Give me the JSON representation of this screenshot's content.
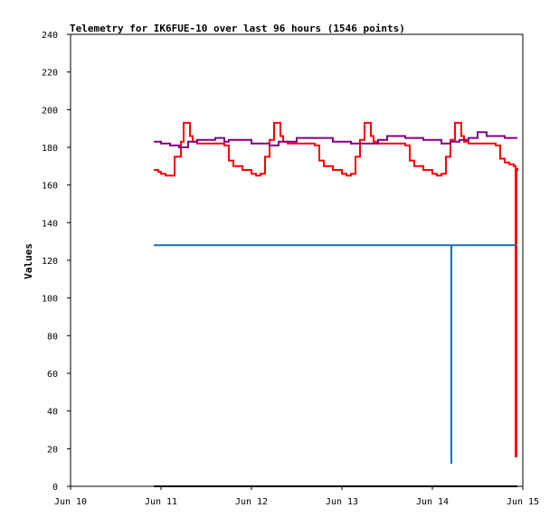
{
  "chart_data": {
    "type": "line",
    "title": "Telemetry for IK6FUE-10 over last 96 hours (1546 points)",
    "xlabel": "",
    "ylabel": "Values",
    "x_ticks": [
      "Jun 10",
      "Jun 11",
      "Jun 12",
      "Jun 13",
      "Jun 14",
      "Jun 15"
    ],
    "y_ticks": [
      "0",
      "20",
      "40",
      "60",
      "80",
      "100",
      "120",
      "140",
      "160",
      "180",
      "200",
      "220",
      "240"
    ],
    "xlim": [
      0,
      5
    ],
    "ylim": [
      0,
      240
    ],
    "grid": false,
    "legend": "none",
    "series": [
      {
        "color": "#ff0000",
        "x": [
          0.92,
          0.97,
          1.0,
          1.05,
          1.08,
          1.15,
          1.22,
          1.25,
          1.3,
          1.32,
          1.35,
          1.4,
          1.5,
          1.6,
          1.7,
          1.75,
          1.8,
          1.9,
          2.0,
          2.05,
          2.1,
          2.15,
          2.2,
          2.25,
          2.3,
          2.32,
          2.35,
          2.4,
          2.5,
          2.6,
          2.7,
          2.75,
          2.8,
          2.9,
          3.0,
          3.05,
          3.1,
          3.15,
          3.2,
          3.25,
          3.3,
          3.32,
          3.35,
          3.4,
          3.5,
          3.6,
          3.7,
          3.75,
          3.8,
          3.9,
          4.0,
          4.05,
          4.1,
          4.15,
          4.2,
          4.25,
          4.3,
          4.32,
          4.35,
          4.4,
          4.5,
          4.6,
          4.7,
          4.75,
          4.8,
          4.85,
          4.9,
          4.92,
          4.92,
          4.93,
          4.93,
          4.94
        ],
        "y": [
          168,
          167,
          166,
          165,
          165,
          175,
          183,
          193,
          193,
          186,
          183,
          182,
          182,
          182,
          181,
          173,
          170,
          168,
          166,
          165,
          166,
          175,
          184,
          193,
          193,
          186,
          183,
          182,
          182,
          182,
          181,
          173,
          170,
          168,
          166,
          165,
          166,
          175,
          184,
          193,
          193,
          186,
          183,
          182,
          182,
          182,
          181,
          173,
          170,
          168,
          166,
          165,
          166,
          175,
          184,
          193,
          193,
          186,
          183,
          182,
          182,
          182,
          181,
          174,
          172,
          171,
          170,
          169,
          16,
          94,
          168,
          169
        ]
      },
      {
        "color": "#800080",
        "x": [
          0.92,
          1.0,
          1.1,
          1.2,
          1.3,
          1.4,
          1.6,
          1.7,
          1.75,
          2.0,
          2.2,
          2.3,
          2.5,
          2.7,
          2.9,
          3.1,
          3.3,
          3.4,
          3.5,
          3.7,
          3.9,
          4.1,
          4.2,
          4.3,
          4.4,
          4.5,
          4.6,
          4.7,
          4.8,
          4.9,
          4.94
        ],
        "y": [
          183,
          182,
          181,
          180,
          183,
          184,
          185,
          183,
          184,
          182,
          181,
          183,
          185,
          185,
          183,
          182,
          182,
          184,
          186,
          185,
          184,
          182,
          183,
          184,
          185,
          188,
          186,
          186,
          185,
          185,
          185
        ]
      },
      {
        "color": "#1e6eb4",
        "x": [
          0.92,
          4.21,
          4.21,
          4.21,
          4.94
        ],
        "y": [
          128,
          128,
          12,
          128,
          128
        ]
      },
      {
        "color": "#000000",
        "x": [
          0.92,
          4.94
        ],
        "y": [
          0,
          0
        ]
      }
    ]
  }
}
